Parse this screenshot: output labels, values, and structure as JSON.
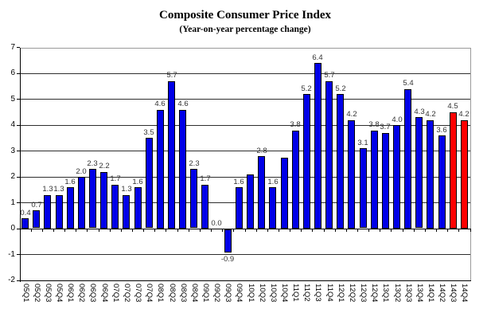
{
  "title": "Composite Consumer Price Index",
  "subtitle": "(Year-on-year percentage change)",
  "chart_data": {
    "type": "bar",
    "title": "Composite Consumer Price Index",
    "subtitle": "(Year-on-year percentage change)",
    "xlabel": "",
    "ylabel": "",
    "ylim": [
      -2,
      7
    ],
    "yticks": [
      "7",
      "6",
      "5",
      "4",
      "3",
      "2",
      "1",
      "0",
      "-1",
      "-2"
    ],
    "grid": true,
    "legend": "none",
    "categories": [
      "05Q1",
      "05Q2",
      "05Q3",
      "05Q4",
      "06Q1",
      "06Q2",
      "06Q3",
      "06Q4",
      "07Q1",
      "07Q2",
      "07Q3",
      "07Q4",
      "08Q1",
      "08Q2",
      "08Q3",
      "08Q4",
      "09Q1",
      "09Q2",
      "09Q3",
      "09Q4",
      "10Q1",
      "10Q2",
      "10Q3",
      "10Q4",
      "11Q1",
      "11Q2",
      "11Q3",
      "11Q4",
      "12Q1",
      "12Q2",
      "12Q3",
      "12Q4",
      "13Q1",
      "13Q2",
      "13Q3",
      "13Q4",
      "14Q1",
      "14Q2",
      "14Q3",
      "14Q4"
    ],
    "values": [
      0.4,
      0.7,
      1.3,
      1.3,
      1.6,
      2.0,
      2.3,
      2.2,
      1.7,
      1.3,
      1.6,
      3.5,
      4.6,
      5.7,
      4.6,
      2.3,
      1.7,
      0.0,
      -0.9,
      1.6,
      2.1,
      2.8,
      1.6,
      2.75,
      3.8,
      5.2,
      6.4,
      5.7,
      5.2,
      4.2,
      3.1,
      3.8,
      3.7,
      4.0,
      5.4,
      4.3,
      4.2,
      3.6,
      4.5,
      4.2
    ],
    "bar_labels": [
      "0.4",
      "0.7",
      "1.3",
      "1.3",
      "1.6",
      "2.0",
      "2.3",
      "2.2",
      "1.7",
      "1.3",
      "1.6",
      "3.5",
      "4.6",
      "5.7",
      "4.6",
      "2.3",
      "1.7",
      "0.0",
      "-0.9",
      "1.6",
      "",
      "2.8",
      "1.6",
      "",
      "3.8",
      "5.2",
      "6.4",
      "5.7",
      "5.2",
      "4.2",
      "3.1",
      "3.8",
      "3.7",
      "4.0",
      "5.4",
      "4.3",
      "4.2",
      "3.6",
      "4.5",
      "4.2"
    ],
    "highlight_categories": [
      "14Q3",
      "14Q4"
    ],
    "colors": {
      "bar_default": "#0000E8",
      "bar_highlight": "#FF0000",
      "bar_border": "#000000",
      "gridline": "#2e2e2e",
      "plot_border": "#9a9a9a",
      "label": "#333333"
    }
  }
}
